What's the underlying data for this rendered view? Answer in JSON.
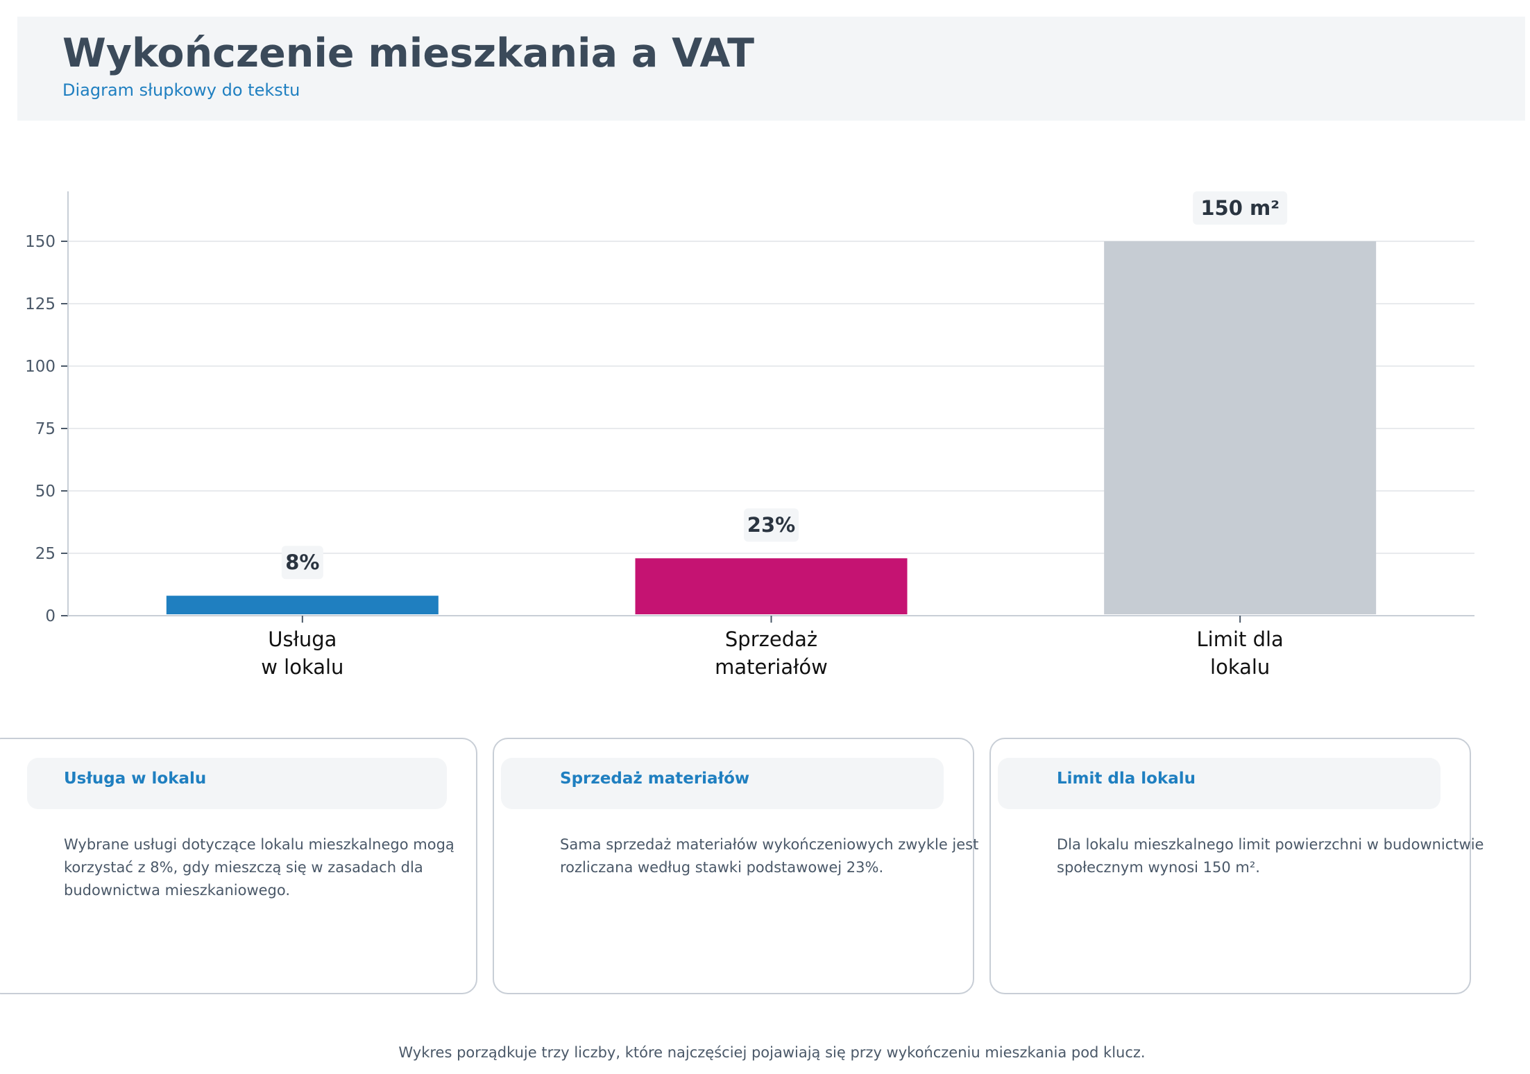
{
  "header": {
    "title": "Wykończenie mieszkania a VAT",
    "subtitle": "Diagram słupkowy do tekstu"
  },
  "chart_data": {
    "type": "bar",
    "categories": [
      [
        "Usługa",
        "w lokalu"
      ],
      [
        "Sprzedaż",
        "materiałów"
      ],
      [
        "Limit dla",
        "lokalu"
      ]
    ],
    "values": [
      8,
      23,
      150
    ],
    "data_labels": [
      "8%",
      "23%",
      "150 m²"
    ],
    "colors": [
      "#1f7fc0",
      "#c51372",
      "#c6ccd3"
    ],
    "yticks": [
      0,
      25,
      50,
      75,
      100,
      125,
      150
    ],
    "ylim": [
      0,
      170
    ],
    "grid": true,
    "xlabel": "",
    "ylabel": ""
  },
  "cards": [
    {
      "title": "Usługa w lokalu",
      "body": "Wybrane usługi dotyczące lokalu mieszkalnego mogą korzystać z 8%, gdy mieszczą się w zasadach dla budownictwa mieszkaniowego."
    },
    {
      "title": "Sprzedaż materiałów",
      "body": "Sama sprzedaż materiałów wykończeniowych zwykle jest rozliczana według stawki podstawowej 23%."
    },
    {
      "title": "Limit dla lokalu",
      "body": "Dla lokalu mieszkalnego limit powierzchni w budownictwie społecznym wynosi 150 m²."
    }
  ],
  "footer": "Wykres porządkuje trzy liczby, które najczęściej pojawiają się przy wykończeniu mieszkania pod klucz."
}
